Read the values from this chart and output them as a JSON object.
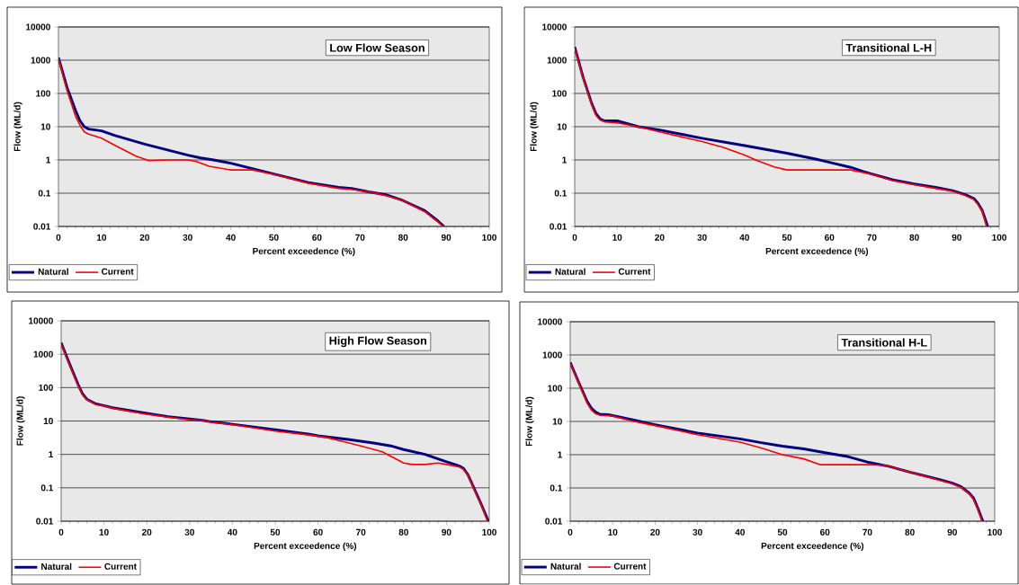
{
  "chart_data": [
    {
      "type": "line",
      "title": "Low Flow Season",
      "xlabel": "Percent exceedence (%)",
      "ylabel": "Flow (ML/d)",
      "log": "y",
      "grid": "y",
      "legend": "bottom left",
      "xlim": [
        0,
        100
      ],
      "ylim": [
        0.01,
        10000
      ],
      "xticks": [
        0,
        10,
        20,
        30,
        40,
        50,
        60,
        70,
        80,
        90,
        100
      ],
      "yticks": [
        0.01,
        0.1,
        1,
        10,
        100,
        1000,
        10000
      ],
      "series": [
        {
          "name": "Natural",
          "color": "#000080",
          "x": [
            0,
            2,
            4,
            5,
            6,
            7,
            10,
            13,
            20,
            30,
            33,
            36,
            40,
            45,
            50,
            58,
            65,
            68,
            72,
            76,
            80,
            85,
            88,
            89.5
          ],
          "values": [
            1200,
            150,
            30,
            15,
            10,
            8.5,
            7.5,
            5.5,
            3,
            1.4,
            1.15,
            1,
            0.8,
            0.55,
            0.38,
            0.21,
            0.15,
            0.14,
            0.11,
            0.09,
            0.06,
            0.03,
            0.015,
            0.01
          ]
        },
        {
          "name": "Current",
          "color": "#ff0000",
          "x": [
            0,
            2,
            4,
            5,
            6,
            7,
            10,
            13,
            18,
            21,
            25,
            30,
            32,
            35,
            40,
            45,
            50,
            58,
            65,
            68,
            72,
            76,
            80,
            85,
            88,
            89.3
          ],
          "values": [
            1100,
            120,
            20,
            11,
            7,
            6,
            4.5,
            2.8,
            1.3,
            0.95,
            1,
            1,
            0.9,
            0.65,
            0.5,
            0.5,
            0.37,
            0.2,
            0.14,
            0.13,
            0.11,
            0.085,
            0.06,
            0.028,
            0.014,
            0.01
          ]
        }
      ]
    },
    {
      "type": "line",
      "title": "Transitional L-H",
      "xlabel": "Percent exceedence (%)",
      "ylabel": "Flow (ML/d)",
      "log": "y",
      "grid": "y",
      "legend": "bottom left",
      "xlim": [
        0,
        100
      ],
      "ylim": [
        0.01,
        10000
      ],
      "xticks": [
        0,
        10,
        20,
        30,
        40,
        50,
        60,
        70,
        80,
        90,
        100
      ],
      "yticks": [
        0.01,
        0.1,
        1,
        10,
        100,
        1000,
        10000
      ],
      "series": [
        {
          "name": "Natural",
          "color": "#000080",
          "x": [
            0,
            2,
            4,
            5,
            6,
            7,
            10,
            15,
            20,
            25,
            30,
            40,
            50,
            57,
            60,
            65,
            68,
            70,
            75,
            80,
            85,
            89,
            92,
            94,
            95,
            96,
            97.3
          ],
          "values": [
            2500,
            300,
            50,
            25,
            17,
            15,
            15,
            10,
            8,
            6,
            4.5,
            2.7,
            1.6,
            1.05,
            0.85,
            0.6,
            0.45,
            0.38,
            0.25,
            0.19,
            0.15,
            0.12,
            0.09,
            0.07,
            0.05,
            0.03,
            0.01
          ]
        },
        {
          "name": "Current",
          "color": "#ff0000",
          "x": [
            0,
            2,
            4,
            5,
            6,
            7,
            10,
            15,
            20,
            25,
            30,
            35,
            40,
            43,
            47,
            50,
            60,
            65,
            70,
            75,
            80,
            85,
            89,
            92,
            94,
            95,
            96,
            97
          ],
          "values": [
            2300,
            280,
            45,
            22,
            16,
            14,
            13,
            10,
            7,
            5,
            3.6,
            2.4,
            1.4,
            0.95,
            0.62,
            0.5,
            0.5,
            0.5,
            0.37,
            0.24,
            0.18,
            0.14,
            0.115,
            0.085,
            0.065,
            0.045,
            0.028,
            0.01
          ]
        }
      ]
    },
    {
      "type": "line",
      "title": "High Flow Season",
      "xlabel": "Percent exceedence (%)",
      "ylabel": "Flow (ML/d)",
      "log": "y",
      "grid": "y",
      "legend": "bottom left",
      "xlim": [
        0,
        100
      ],
      "ylim": [
        0.01,
        10000
      ],
      "xticks": [
        0,
        10,
        20,
        30,
        40,
        50,
        60,
        70,
        80,
        90,
        100
      ],
      "yticks": [
        0.01,
        0.1,
        1,
        10,
        100,
        1000,
        10000
      ],
      "series": [
        {
          "name": "Natural",
          "color": "#000080",
          "x": [
            0,
            2,
            4,
            5,
            6,
            8,
            10,
            12,
            20,
            25,
            30,
            33,
            35,
            40,
            50,
            58,
            60,
            67,
            73,
            77,
            80,
            85,
            90,
            93,
            94,
            95,
            96,
            98,
            99.8
          ],
          "values": [
            2200,
            500,
            120,
            65,
            45,
            33,
            29,
            25,
            17,
            13.5,
            11.5,
            10.5,
            9.5,
            8,
            5.5,
            4,
            3.6,
            2.8,
            2.2,
            1.8,
            1.4,
            1,
            0.6,
            0.45,
            0.38,
            0.25,
            0.13,
            0.035,
            0.01
          ]
        },
        {
          "name": "Current",
          "color": "#ff0000",
          "x": [
            0,
            2,
            4,
            5,
            6,
            8,
            10,
            12,
            20,
            25,
            30,
            33,
            35,
            40,
            50,
            58,
            62,
            66,
            70,
            75,
            78,
            80,
            82,
            85,
            88,
            90,
            93,
            94,
            95,
            96,
            98,
            99.6
          ],
          "values": [
            2000,
            450,
            110,
            60,
            43,
            32,
            28,
            24,
            16,
            13,
            11,
            10.5,
            9.3,
            7.8,
            5,
            3.8,
            3.2,
            2.4,
            1.8,
            1.2,
            0.75,
            0.55,
            0.5,
            0.5,
            0.55,
            0.5,
            0.42,
            0.35,
            0.24,
            0.12,
            0.033,
            0.01
          ]
        }
      ]
    },
    {
      "type": "line",
      "title": "Transitional H-L",
      "xlabel": "Percent exceedence (%)",
      "ylabel": "Flow (ML/d)",
      "log": "y",
      "grid": "y",
      "legend": "bottom left",
      "xlim": [
        0,
        100
      ],
      "ylim": [
        0.01,
        10000
      ],
      "xticks": [
        0,
        10,
        20,
        30,
        40,
        50,
        60,
        70,
        80,
        90,
        100
      ],
      "yticks": [
        0.01,
        0.1,
        1,
        10,
        100,
        1000,
        10000
      ],
      "series": [
        {
          "name": "Natural",
          "color": "#000080",
          "x": [
            0,
            2,
            4,
            5,
            6,
            7,
            9,
            10,
            15,
            20,
            30,
            40,
            45,
            50,
            55,
            60,
            65,
            70,
            75,
            80,
            87,
            90,
            92,
            94,
            95,
            96,
            97.2
          ],
          "values": [
            600,
            150,
            40,
            25,
            19,
            16.5,
            16,
            15,
            11,
            8,
            4.5,
            3,
            2.3,
            1.8,
            1.5,
            1.15,
            0.9,
            0.6,
            0.45,
            0.3,
            0.18,
            0.14,
            0.11,
            0.07,
            0.05,
            0.025,
            0.01
          ]
        },
        {
          "name": "Current",
          "color": "#ff0000",
          "x": [
            0,
            2,
            4,
            5,
            6,
            7,
            10,
            15,
            20,
            30,
            40,
            45,
            50,
            55,
            59,
            65,
            70,
            74,
            80,
            87,
            90,
            92,
            94,
            95,
            96,
            97
          ],
          "values": [
            550,
            140,
            35,
            22,
            17,
            15.5,
            14.5,
            10,
            7.5,
            4,
            2.4,
            1.6,
            1,
            0.75,
            0.5,
            0.5,
            0.5,
            0.48,
            0.3,
            0.17,
            0.135,
            0.105,
            0.065,
            0.045,
            0.023,
            0.01
          ]
        }
      ]
    }
  ]
}
